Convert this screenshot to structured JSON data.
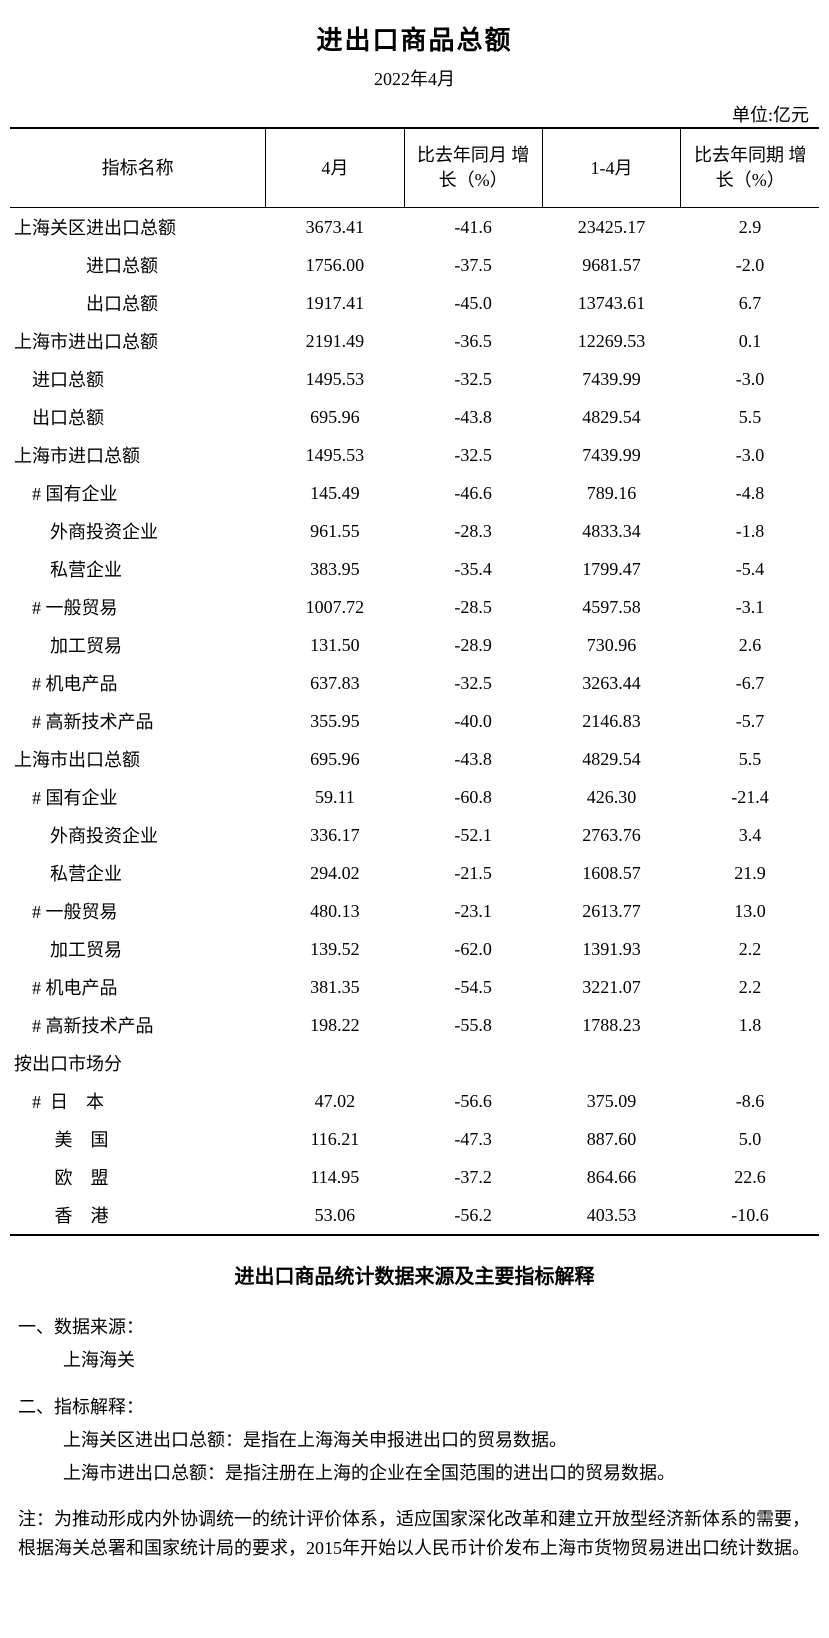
{
  "title": "进出口商品总额",
  "subtitle": "2022年4月",
  "unit": "单位:亿元",
  "table": {
    "columns": [
      "指标名称",
      "4月",
      "比去年同月\n增长（%）",
      "1-4月",
      "比去年同期\n增长（%）"
    ],
    "rows": [
      {
        "name": "上海关区进出口总额",
        "indent": 0,
        "v": [
          "3673.41",
          "-41.6",
          "23425.17",
          "2.9"
        ]
      },
      {
        "name": "进口总额",
        "indent": 4,
        "v": [
          "1756.00",
          "-37.5",
          "9681.57",
          "-2.0"
        ]
      },
      {
        "name": "出口总额",
        "indent": 4,
        "v": [
          "1917.41",
          "-45.0",
          "13743.61",
          "6.7"
        ]
      },
      {
        "name": "上海市进出口总额",
        "indent": 0,
        "v": [
          "2191.49",
          "-36.5",
          "12269.53",
          "0.1"
        ]
      },
      {
        "name": "进口总额",
        "indent": 1,
        "v": [
          "1495.53",
          "-32.5",
          "7439.99",
          "-3.0"
        ]
      },
      {
        "name": "出口总额",
        "indent": 1,
        "v": [
          "695.96",
          "-43.8",
          "4829.54",
          "5.5"
        ]
      },
      {
        "name": "上海市进口总额",
        "indent": 0,
        "v": [
          "1495.53",
          "-32.5",
          "7439.99",
          "-3.0"
        ]
      },
      {
        "name": "# 国有企业",
        "indent": 1,
        "v": [
          "145.49",
          "-46.6",
          "789.16",
          "-4.8"
        ]
      },
      {
        "name": "外商投资企业",
        "indent": 2,
        "v": [
          "961.55",
          "-28.3",
          "4833.34",
          "-1.8"
        ]
      },
      {
        "name": "私营企业",
        "indent": 2,
        "v": [
          "383.95",
          "-35.4",
          "1799.47",
          "-5.4"
        ]
      },
      {
        "name": "# 一般贸易",
        "indent": 1,
        "v": [
          "1007.72",
          "-28.5",
          "4597.58",
          "-3.1"
        ]
      },
      {
        "name": "加工贸易",
        "indent": 2,
        "v": [
          "131.50",
          "-28.9",
          "730.96",
          "2.6"
        ]
      },
      {
        "name": "# 机电产品",
        "indent": 1,
        "v": [
          "637.83",
          "-32.5",
          "3263.44",
          "-6.7"
        ]
      },
      {
        "name": "# 高新技术产品",
        "indent": 1,
        "v": [
          "355.95",
          "-40.0",
          "2146.83",
          "-5.7"
        ]
      },
      {
        "name": "上海市出口总额",
        "indent": 0,
        "v": [
          "695.96",
          "-43.8",
          "4829.54",
          "5.5"
        ]
      },
      {
        "name": "# 国有企业",
        "indent": 1,
        "v": [
          "59.11",
          "-60.8",
          "426.30",
          "-21.4"
        ]
      },
      {
        "name": "外商投资企业",
        "indent": 2,
        "v": [
          "336.17",
          "-52.1",
          "2763.76",
          "3.4"
        ]
      },
      {
        "name": "私营企业",
        "indent": 2,
        "v": [
          "294.02",
          "-21.5",
          "1608.57",
          "21.9"
        ]
      },
      {
        "name": "# 一般贸易",
        "indent": 1,
        "v": [
          "480.13",
          "-23.1",
          "2613.77",
          "13.0"
        ]
      },
      {
        "name": "加工贸易",
        "indent": 2,
        "v": [
          "139.52",
          "-62.0",
          "1391.93",
          "2.2"
        ]
      },
      {
        "name": "# 机电产品",
        "indent": 1,
        "v": [
          "381.35",
          "-54.5",
          "3221.07",
          "2.2"
        ]
      },
      {
        "name": "# 高新技术产品",
        "indent": 1,
        "v": [
          "198.22",
          "-55.8",
          "1788.23",
          "1.8"
        ]
      },
      {
        "name": "按出口市场分",
        "indent": 0,
        "v": [
          "",
          "",
          "",
          ""
        ]
      },
      {
        "name": "#  日　本",
        "indent": 1,
        "v": [
          "47.02",
          "-56.6",
          "375.09",
          "-8.6"
        ]
      },
      {
        "name": "美　国",
        "indent": 2.5,
        "v": [
          "116.21",
          "-47.3",
          "887.60",
          "5.0"
        ]
      },
      {
        "name": "欧　盟",
        "indent": 2.5,
        "v": [
          "114.95",
          "-37.2",
          "864.66",
          "22.6"
        ]
      },
      {
        "name": "香　港",
        "indent": 2.5,
        "v": [
          "53.06",
          "-56.2",
          "403.53",
          "-10.6"
        ]
      }
    ]
  },
  "notes": {
    "section_title": "进出口商品统计数据来源及主要指标解释",
    "source_label": "一、数据来源：",
    "source_value": "上海海关",
    "explain_label": "二、指标解释：",
    "explain_1": "上海关区进出口总额：是指在上海海关申报进出口的贸易数据。",
    "explain_2": "上海市进出口总额：是指注册在上海的企业在全国范围的进出口的贸易数据。",
    "footnote": "注：为推动形成内外协调统一的统计评价体系，适应国家深化改革和建立开放型经济新体系的需要，根据海关总署和国家统计局的要求，2015年开始以人民币计价发布上海市货物贸易进出口统计数据。"
  }
}
